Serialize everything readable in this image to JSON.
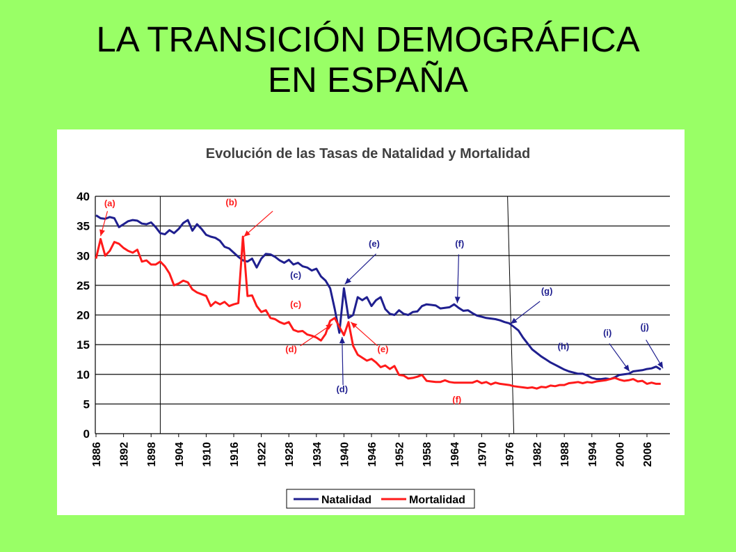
{
  "slide": {
    "title_line1": "LA TRANSICIÓN DEMOGRÁFICA",
    "title_line2": "EN ESPAÑA"
  },
  "colors": {
    "background": "#99ff66",
    "natalidad": "#1f1f8f",
    "mortalidad": "#ff1a1a",
    "grid": "#333333"
  },
  "chart_data": {
    "type": "line",
    "title": "Evolución de las Tasas de Natalidad y Mortalidad",
    "xlabel": "",
    "ylabel": "",
    "xlim": [
      1886,
      2008
    ],
    "ylim": [
      0,
      40
    ],
    "y_ticks": [
      0,
      5,
      10,
      15,
      20,
      25,
      30,
      35,
      40
    ],
    "x_ticks": [
      "1886",
      "1892",
      "1898",
      "1904",
      "1910",
      "1916",
      "1922",
      "1928",
      "1934",
      "1940",
      "1946",
      "1952",
      "1958",
      "1964",
      "1970",
      "1976",
      "1982",
      "1988",
      "1994",
      "2000",
      "2006"
    ],
    "grid": "horizontal",
    "legend_position": "bottom",
    "phase_lines": [
      1900,
      1977
    ],
    "series": [
      {
        "name": "Natalidad",
        "color": "#1f1f8f",
        "points": [
          [
            1886,
            36.8
          ],
          [
            1887,
            36.3
          ],
          [
            1888,
            36.2
          ],
          [
            1889,
            36.5
          ],
          [
            1890,
            36.3
          ],
          [
            1891,
            34.8
          ],
          [
            1892,
            35.3
          ],
          [
            1893,
            35.8
          ],
          [
            1894,
            36.0
          ],
          [
            1895,
            35.9
          ],
          [
            1896,
            35.4
          ],
          [
            1897,
            35.3
          ],
          [
            1898,
            35.6
          ],
          [
            1899,
            34.8
          ],
          [
            1900,
            33.8
          ],
          [
            1901,
            33.6
          ],
          [
            1902,
            34.3
          ],
          [
            1903,
            33.8
          ],
          [
            1904,
            34.5
          ],
          [
            1905,
            35.5
          ],
          [
            1906,
            36.0
          ],
          [
            1907,
            34.2
          ],
          [
            1908,
            35.3
          ],
          [
            1909,
            34.5
          ],
          [
            1910,
            33.5
          ],
          [
            1911,
            33.2
          ],
          [
            1912,
            33.0
          ],
          [
            1913,
            32.5
          ],
          [
            1914,
            31.5
          ],
          [
            1915,
            31.2
          ],
          [
            1916,
            30.5
          ],
          [
            1917,
            29.8
          ],
          [
            1918,
            29.2
          ],
          [
            1919,
            29.0
          ],
          [
            1920,
            29.5
          ],
          [
            1921,
            28.0
          ],
          [
            1922,
            29.5
          ],
          [
            1923,
            30.3
          ],
          [
            1924,
            30.2
          ],
          [
            1925,
            29.8
          ],
          [
            1926,
            29.2
          ],
          [
            1927,
            28.8
          ],
          [
            1928,
            29.3
          ],
          [
            1929,
            28.5
          ],
          [
            1930,
            28.8
          ],
          [
            1931,
            28.2
          ],
          [
            1932,
            28.0
          ],
          [
            1933,
            27.5
          ],
          [
            1934,
            27.8
          ],
          [
            1935,
            26.5
          ],
          [
            1936,
            25.8
          ],
          [
            1937,
            24.5
          ],
          [
            1938,
            21.0
          ],
          [
            1939,
            17.0
          ],
          [
            1940,
            24.5
          ],
          [
            1941,
            19.5
          ],
          [
            1942,
            20.0
          ],
          [
            1943,
            23.0
          ],
          [
            1944,
            22.5
          ],
          [
            1945,
            23.0
          ],
          [
            1946,
            21.5
          ],
          [
            1947,
            22.5
          ],
          [
            1948,
            23.0
          ],
          [
            1949,
            21.0
          ],
          [
            1950,
            20.2
          ],
          [
            1951,
            20.0
          ],
          [
            1952,
            20.8
          ],
          [
            1953,
            20.2
          ],
          [
            1954,
            20.0
          ],
          [
            1955,
            20.5
          ],
          [
            1956,
            20.6
          ],
          [
            1957,
            21.5
          ],
          [
            1958,
            21.8
          ],
          [
            1959,
            21.7
          ],
          [
            1960,
            21.6
          ],
          [
            1961,
            21.1
          ],
          [
            1962,
            21.2
          ],
          [
            1963,
            21.3
          ],
          [
            1964,
            21.8
          ],
          [
            1965,
            21.2
          ],
          [
            1966,
            20.7
          ],
          [
            1967,
            20.8
          ],
          [
            1968,
            20.3
          ],
          [
            1969,
            19.9
          ],
          [
            1970,
            19.7
          ],
          [
            1971,
            19.5
          ],
          [
            1972,
            19.4
          ],
          [
            1973,
            19.3
          ],
          [
            1974,
            19.1
          ],
          [
            1975,
            18.8
          ],
          [
            1976,
            18.6
          ],
          [
            1977,
            18.0
          ],
          [
            1978,
            17.4
          ],
          [
            1979,
            16.2
          ],
          [
            1980,
            15.2
          ],
          [
            1981,
            14.2
          ],
          [
            1982,
            13.6
          ],
          [
            1983,
            13.0
          ],
          [
            1984,
            12.5
          ],
          [
            1985,
            12.0
          ],
          [
            1986,
            11.6
          ],
          [
            1987,
            11.2
          ],
          [
            1988,
            10.8
          ],
          [
            1989,
            10.5
          ],
          [
            1990,
            10.3
          ],
          [
            1991,
            10.1
          ],
          [
            1992,
            10.1
          ],
          [
            1993,
            9.8
          ],
          [
            1994,
            9.4
          ],
          [
            1995,
            9.2
          ],
          [
            1996,
            9.2
          ],
          [
            1997,
            9.3
          ],
          [
            1998,
            9.2
          ],
          [
            1999,
            9.5
          ],
          [
            2000,
            9.9
          ],
          [
            2001,
            10.0
          ],
          [
            2002,
            10.1
          ],
          [
            2003,
            10.5
          ],
          [
            2004,
            10.6
          ],
          [
            2005,
            10.7
          ],
          [
            2006,
            10.9
          ],
          [
            2007,
            11.0
          ],
          [
            2008,
            11.3
          ],
          [
            2009,
            10.8
          ]
        ]
      },
      {
        "name": "Mortalidad",
        "color": "#ff1a1a",
        "points": [
          [
            1886,
            29.5
          ],
          [
            1887,
            32.8
          ],
          [
            1888,
            30.0
          ],
          [
            1889,
            30.8
          ],
          [
            1890,
            32.3
          ],
          [
            1891,
            32.0
          ],
          [
            1892,
            31.3
          ],
          [
            1893,
            30.8
          ],
          [
            1894,
            30.5
          ],
          [
            1895,
            31.0
          ],
          [
            1896,
            29.0
          ],
          [
            1897,
            29.2
          ],
          [
            1898,
            28.5
          ],
          [
            1899,
            28.5
          ],
          [
            1900,
            29.0
          ],
          [
            1901,
            28.2
          ],
          [
            1902,
            27.0
          ],
          [
            1903,
            25.0
          ],
          [
            1904,
            25.3
          ],
          [
            1905,
            25.8
          ],
          [
            1906,
            25.5
          ],
          [
            1907,
            24.3
          ],
          [
            1908,
            23.8
          ],
          [
            1909,
            23.5
          ],
          [
            1910,
            23.2
          ],
          [
            1911,
            21.5
          ],
          [
            1912,
            22.2
          ],
          [
            1913,
            21.8
          ],
          [
            1914,
            22.2
          ],
          [
            1915,
            21.5
          ],
          [
            1916,
            21.8
          ],
          [
            1917,
            22.0
          ],
          [
            1918,
            33.2
          ],
          [
            1919,
            23.2
          ],
          [
            1920,
            23.3
          ],
          [
            1921,
            21.5
          ],
          [
            1922,
            20.5
          ],
          [
            1923,
            20.8
          ],
          [
            1924,
            19.5
          ],
          [
            1925,
            19.3
          ],
          [
            1926,
            18.8
          ],
          [
            1927,
            18.5
          ],
          [
            1928,
            18.8
          ],
          [
            1929,
            17.5
          ],
          [
            1930,
            17.2
          ],
          [
            1931,
            17.3
          ],
          [
            1932,
            16.7
          ],
          [
            1933,
            16.5
          ],
          [
            1934,
            16.2
          ],
          [
            1935,
            15.7
          ],
          [
            1936,
            16.8
          ],
          [
            1937,
            19.0
          ],
          [
            1938,
            19.5
          ],
          [
            1939,
            18.0
          ],
          [
            1940,
            16.6
          ],
          [
            1941,
            18.8
          ],
          [
            1942,
            14.8
          ],
          [
            1943,
            13.3
          ],
          [
            1944,
            12.8
          ],
          [
            1945,
            12.3
          ],
          [
            1946,
            12.6
          ],
          [
            1947,
            12.0
          ],
          [
            1948,
            11.2
          ],
          [
            1949,
            11.5
          ],
          [
            1950,
            10.9
          ],
          [
            1951,
            11.4
          ],
          [
            1952,
            9.9
          ],
          [
            1953,
            9.8
          ],
          [
            1954,
            9.3
          ],
          [
            1955,
            9.4
          ],
          [
            1956,
            9.6
          ],
          [
            1957,
            9.9
          ],
          [
            1958,
            8.9
          ],
          [
            1959,
            8.8
          ],
          [
            1960,
            8.7
          ],
          [
            1961,
            8.7
          ],
          [
            1962,
            9.0
          ],
          [
            1963,
            8.7
          ],
          [
            1964,
            8.6
          ],
          [
            1965,
            8.6
          ],
          [
            1966,
            8.6
          ],
          [
            1967,
            8.6
          ],
          [
            1968,
            8.6
          ],
          [
            1969,
            8.9
          ],
          [
            1970,
            8.5
          ],
          [
            1971,
            8.7
          ],
          [
            1972,
            8.3
          ],
          [
            1973,
            8.6
          ],
          [
            1974,
            8.4
          ],
          [
            1975,
            8.3
          ],
          [
            1976,
            8.2
          ],
          [
            1977,
            8.0
          ],
          [
            1978,
            7.9
          ],
          [
            1979,
            7.8
          ],
          [
            1980,
            7.7
          ],
          [
            1981,
            7.8
          ],
          [
            1982,
            7.6
          ],
          [
            1983,
            7.9
          ],
          [
            1984,
            7.8
          ],
          [
            1985,
            8.1
          ],
          [
            1986,
            8.0
          ],
          [
            1987,
            8.2
          ],
          [
            1988,
            8.2
          ],
          [
            1989,
            8.5
          ],
          [
            1990,
            8.6
          ],
          [
            1991,
            8.7
          ],
          [
            1992,
            8.5
          ],
          [
            1993,
            8.7
          ],
          [
            1994,
            8.6
          ],
          [
            1995,
            8.8
          ],
          [
            1996,
            8.9
          ],
          [
            1997,
            9.0
          ],
          [
            1998,
            9.2
          ],
          [
            1999,
            9.4
          ],
          [
            2000,
            9.1
          ],
          [
            2001,
            8.9
          ],
          [
            2002,
            9.0
          ],
          [
            2003,
            9.2
          ],
          [
            2004,
            8.8
          ],
          [
            2005,
            8.9
          ],
          [
            2006,
            8.4
          ],
          [
            2007,
            8.6
          ],
          [
            2008,
            8.4
          ],
          [
            2009,
            8.4
          ]
        ]
      }
    ],
    "annotations": [
      {
        "label": "(a)",
        "color": "red",
        "lx": 1889,
        "ly": 38.3,
        "arrow_to": [
          1887,
          33.3
        ],
        "arrow_from": [
          1888.5,
          37.5
        ]
      },
      {
        "label": "(b)",
        "color": "red",
        "lx": 1915.5,
        "ly": 38.5,
        "arrow_to": [
          1918.2,
          33.2
        ],
        "arrow_from": [
          1924.5,
          37.5
        ]
      },
      {
        "label": "(c)",
        "color": "navy",
        "lx": 1929.5,
        "ly": 26.2,
        "arrow_to": null,
        "arrow_from": null
      },
      {
        "label": "(c)",
        "color": "red",
        "lx": 1929.5,
        "ly": 21.3,
        "arrow_to": null,
        "arrow_from": null
      },
      {
        "label": "(d)",
        "color": "red",
        "lx": 1928.5,
        "ly": 13.7,
        "arrow_to": [
          1937.5,
          18.5
        ],
        "arrow_from": [
          1930.5,
          14.8
        ]
      },
      {
        "label": "(d)",
        "color": "navy",
        "lx": 1939.6,
        "ly": 7.0,
        "arrow_to": [
          1939.6,
          16.3
        ],
        "arrow_from": [
          1939.8,
          8.2
        ]
      },
      {
        "label": "(e)",
        "color": "navy",
        "lx": 1946.6,
        "ly": 31.5,
        "arrow_to": [
          1940.2,
          25.2
        ],
        "arrow_from": [
          1947.0,
          30.3
        ]
      },
      {
        "label": "(e)",
        "color": "red",
        "lx": 1948.5,
        "ly": 13.7,
        "arrow_to": [
          1941.5,
          18.8
        ],
        "arrow_from": [
          1947.3,
          14.8
        ]
      },
      {
        "label": "(f)",
        "color": "navy",
        "lx": 1965.2,
        "ly": 31.5,
        "arrow_to": [
          1964.7,
          22.0
        ],
        "arrow_from": [
          1965.0,
          30.2
        ]
      },
      {
        "label": "(f)",
        "color": "red",
        "lx": 1964.6,
        "ly": 5.2,
        "arrow_to": null,
        "arrow_from": null
      },
      {
        "label": "(g)",
        "color": "navy",
        "lx": 1984.2,
        "ly": 23.5,
        "arrow_to": [
          1976.3,
          18.5
        ],
        "arrow_from": [
          1982.7,
          22.3
        ]
      },
      {
        "label": "(h)",
        "color": "navy",
        "lx": 1987.8,
        "ly": 14.2,
        "arrow_to": null,
        "arrow_from": null
      },
      {
        "label": "(i)",
        "color": "navy",
        "lx": 1997.4,
        "ly": 16.5,
        "arrow_to": [
          2002.2,
          10.5
        ],
        "arrow_from": [
          1997.8,
          15.2
        ]
      },
      {
        "label": "(j)",
        "color": "navy",
        "lx": 2005.5,
        "ly": 17.5,
        "arrow_to": [
          2009.5,
          11.0
        ],
        "arrow_from": [
          2005.8,
          15.8
        ]
      }
    ]
  }
}
